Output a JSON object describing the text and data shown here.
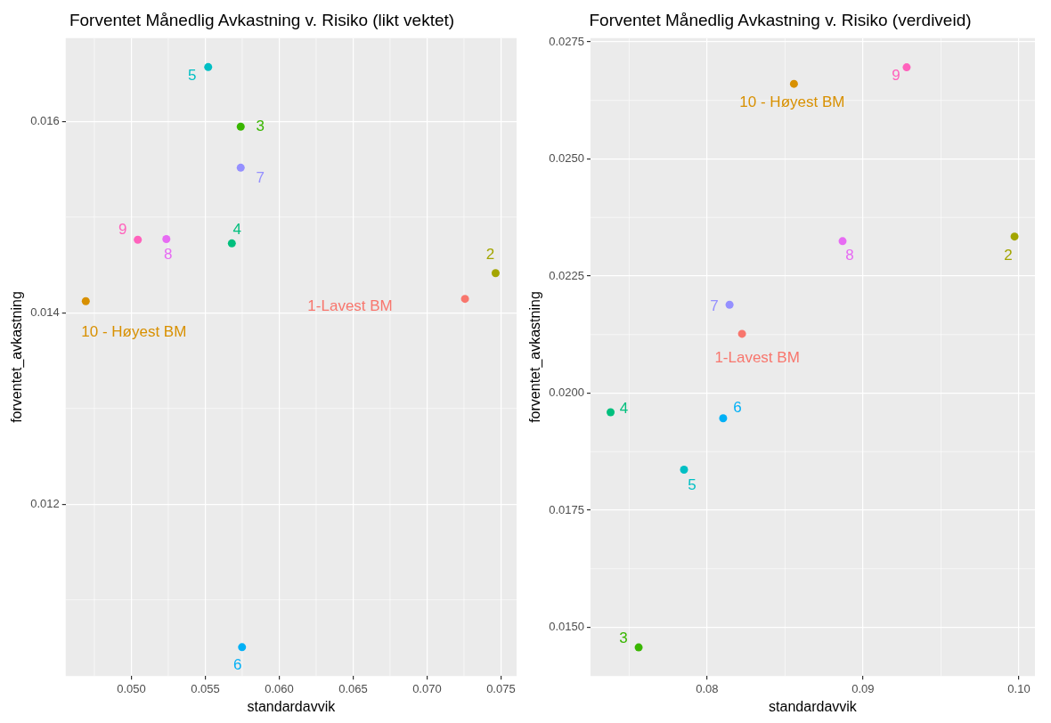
{
  "chart_data": [
    {
      "type": "scatter",
      "title": "Forventet Månedlig Avkastning v. Risiko (likt vektet)",
      "xlabel": "standardavvik",
      "ylabel": "forventet_avkastning",
      "marker": "circle",
      "grid": true,
      "xlim": [
        0.04556,
        0.07606
      ],
      "ylim": [
        0.010204,
        0.01687
      ],
      "xticks": [
        {
          "value": 0.05,
          "label": "0.050"
        },
        {
          "value": 0.055,
          "label": "0.055"
        },
        {
          "value": 0.06,
          "label": "0.060"
        },
        {
          "value": 0.065,
          "label": "0.065"
        },
        {
          "value": 0.07,
          "label": "0.070"
        },
        {
          "value": 0.075,
          "label": "0.075"
        }
      ],
      "yticks": [
        0.012,
        0.014,
        0.016
      ],
      "series": [
        {
          "name": "1-Lavest BM",
          "color": "#f8766d",
          "x": [
            0.07257
          ],
          "values": [
            0.014145
          ]
        },
        {
          "name": "2",
          "color": "#a3a500",
          "x": [
            0.07464
          ],
          "values": [
            0.014414
          ]
        },
        {
          "name": "3",
          "color": "#39b600",
          "x": [
            0.0574
          ],
          "values": [
            0.015945
          ]
        },
        {
          "name": "4",
          "color": "#00bf7d",
          "x": [
            0.0568
          ],
          "values": [
            0.014725
          ]
        },
        {
          "name": "5",
          "color": "#00bfc4",
          "x": [
            0.0552
          ],
          "values": [
            0.016567
          ]
        },
        {
          "name": "6",
          "color": "#00b0f6",
          "x": [
            0.05749
          ],
          "values": [
            0.010505
          ]
        },
        {
          "name": "7",
          "color": "#9590ff",
          "x": [
            0.0574
          ],
          "values": [
            0.015516
          ]
        },
        {
          "name": "8",
          "color": "#e76bf3",
          "x": [
            0.05237
          ],
          "values": [
            0.01477
          ]
        },
        {
          "name": "9",
          "color": "#ff62bc",
          "x": [
            0.05044
          ],
          "values": [
            0.014763
          ]
        },
        {
          "name": "10 - Høyest BM",
          "color": "#d89000",
          "x": [
            0.04692
          ],
          "values": [
            0.014121
          ]
        }
      ]
    },
    {
      "type": "scatter",
      "title": "Forventet Månedlig Avkastning v. Risiko (verdiveid)",
      "xlabel": "standardavvik",
      "ylabel": "forventet_avkastning",
      "marker": "circle",
      "grid": true,
      "xlim": [
        0.07252,
        0.10103
      ],
      "ylim": [
        0.01396,
        0.02758
      ],
      "xticks": [
        0.08,
        0.09,
        {
          "value": 0.1,
          "label": "0.10"
        }
      ],
      "yticks": [
        {
          "value": 0.015,
          "label": "0.0150"
        },
        {
          "value": 0.0175,
          "label": "0.0175"
        },
        {
          "value": 0.02,
          "label": "0.0200"
        },
        {
          "value": 0.0225,
          "label": "0.0225"
        },
        {
          "value": 0.025,
          "label": "0.0250"
        },
        {
          "value": 0.0275,
          "label": "0.0275"
        }
      ],
      "series": [
        {
          "name": "1-Lavest BM",
          "color": "#f8766d",
          "x": [
            0.08224
          ],
          "values": [
            0.021266
          ]
        },
        {
          "name": "2",
          "color": "#a3a500",
          "x": [
            0.09972
          ],
          "values": [
            0.023343
          ]
        },
        {
          "name": "3",
          "color": "#39b600",
          "x": [
            0.07561
          ],
          "values": [
            0.01457
          ]
        },
        {
          "name": "4",
          "color": "#00bf7d",
          "x": [
            0.07381
          ],
          "values": [
            0.019591
          ]
        },
        {
          "name": "5",
          "color": "#00bfc4",
          "x": [
            0.07852
          ],
          "values": [
            0.018364
          ]
        },
        {
          "name": "6",
          "color": "#00b0f6",
          "x": [
            0.08103
          ],
          "values": [
            0.019464
          ]
        },
        {
          "name": "7",
          "color": "#9590ff",
          "x": [
            0.08144
          ],
          "values": [
            0.021886
          ]
        },
        {
          "name": "8",
          "color": "#e76bf3",
          "x": [
            0.08869
          ],
          "values": [
            0.023244
          ]
        },
        {
          "name": "9",
          "color": "#ff62bc",
          "x": [
            0.0928
          ],
          "values": [
            0.026957
          ]
        },
        {
          "name": "10 - Høyest BM",
          "color": "#d89000",
          "x": [
            0.08557
          ],
          "values": [
            0.026604
          ]
        }
      ]
    }
  ]
}
